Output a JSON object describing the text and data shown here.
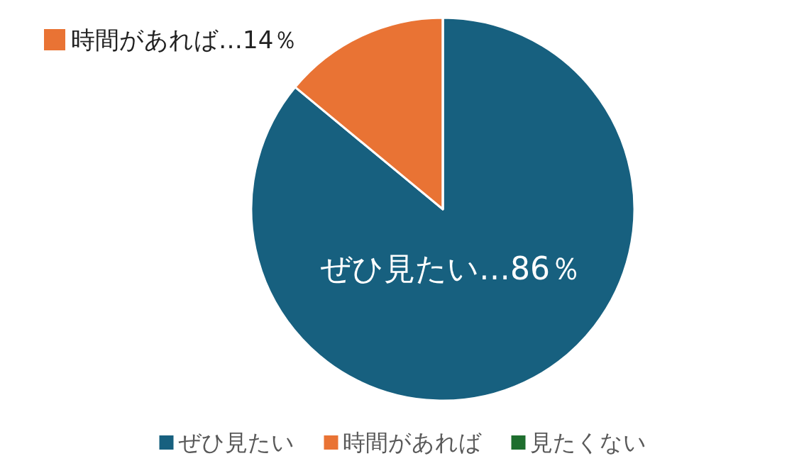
{
  "chart_data": {
    "type": "pie",
    "categories": [
      "ぜひ見たい",
      "時間があれば",
      "見たくない"
    ],
    "values": [
      86,
      14,
      0
    ],
    "colors": [
      "#17607f",
      "#e97334",
      "#1e6e2e"
    ],
    "value_labels": [
      "ぜひ見たい…86％",
      "時間があれば…14％",
      null
    ],
    "legend": "bottom"
  }
}
